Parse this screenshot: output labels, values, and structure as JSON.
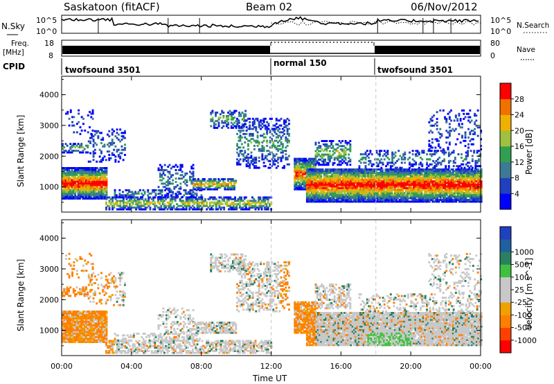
{
  "header": {
    "station": "Saskatoon (fitACF)",
    "beam": "Beam 02",
    "date": "06/Nov/2012"
  },
  "top_panels": {
    "nsky_label": "N.Sky",
    "nsky_ticks": [
      "10^5",
      "10^0"
    ],
    "nsearch_label": "N.Search",
    "nsearch_ticks": [
      "10^5",
      "10^0"
    ],
    "freq_label": "Freq.",
    "freq_unit": "[MHz]",
    "freq_ticks": [
      "18",
      "8"
    ],
    "nave_label": "Nave",
    "nave_ticks": [
      "80",
      "0"
    ],
    "cpid_label": "CPID",
    "cpid_segments": [
      {
        "label": "twofsound 3501",
        "start_h": 0,
        "end_h": 12
      },
      {
        "label": "normal 150",
        "start_h": 12,
        "end_h": 18
      },
      {
        "label": "twofsound 3501",
        "start_h": 18,
        "end_h": 24
      }
    ]
  },
  "colors": {
    "power": [
      "#0000ff",
      "#2040c0",
      "#3c7a96",
      "#30a050",
      "#a0c040",
      "#f0b000",
      "#f07000",
      "#ff0000"
    ],
    "velocity": [
      "#ff0000",
      "#ff4000",
      "#ff8000",
      "#f0a000",
      "#c8c8c8",
      "#c8c8c8",
      "#40c040",
      "#2a8060",
      "#2060a0",
      "#2040c0"
    ],
    "dashed_line": "#c8c8c8"
  },
  "chart_data": [
    {
      "type": "heatmap",
      "name_hint": "power",
      "ylabel": "Slant Range [km]",
      "y_ticks": [
        "1000",
        "2000",
        "3000",
        "4000"
      ],
      "colorbar_label": "Power [dB]",
      "colorbar_ticks": [
        "4",
        "8",
        "12",
        "16",
        "20",
        "24",
        "28"
      ],
      "xlim": [
        0,
        24
      ],
      "ylim": [
        180,
        4600
      ]
    },
    {
      "type": "heatmap",
      "name_hint": "velocity",
      "ylabel": "Slant Range [km]",
      "y_ticks": [
        "1000",
        "2000",
        "3000",
        "4000"
      ],
      "colorbar_label": "Velocity [m s^-1]",
      "colorbar_ticks": [
        "-1000",
        "-500",
        "-100",
        "-25",
        "25",
        "100",
        "500",
        "1000"
      ],
      "xlim": [
        0,
        24
      ],
      "ylim": [
        180,
        4600
      ]
    }
  ],
  "x_axis": {
    "ticks": [
      "00:00",
      "04:00",
      "08:00",
      "12:00",
      "16:00",
      "20:00",
      "00:00"
    ],
    "tick_hours": [
      0,
      4,
      8,
      12,
      16,
      20,
      24
    ],
    "label": "Time UT"
  }
}
